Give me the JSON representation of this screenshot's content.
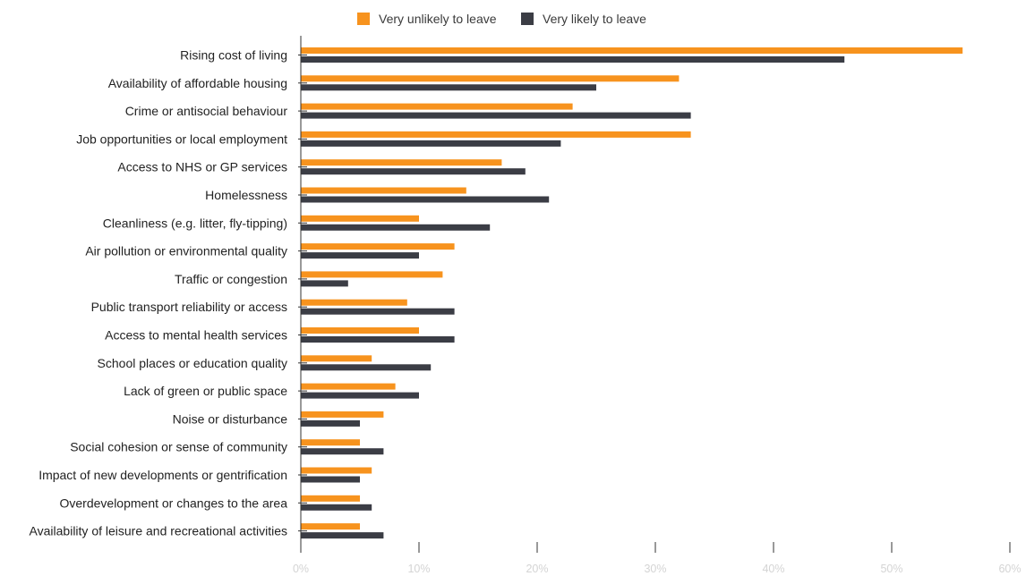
{
  "chart_data": {
    "type": "bar",
    "orientation": "horizontal",
    "categories": [
      "Rising cost of living",
      "Availability of affordable housing",
      "Crime or antisocial behaviour",
      "Job opportunities or local employment",
      "Access to NHS or GP services",
      "Homelessness",
      "Cleanliness (e.g. litter, fly-tipping)",
      "Air pollution or environmental quality",
      "Traffic or congestion",
      "Public transport reliability or access",
      "Access to mental health services",
      "School places or education quality",
      "Lack of green or public space",
      "Noise or disturbance",
      "Social cohesion or sense of community",
      "Impact of new developments or gentrification",
      "Overdevelopment or changes to the area",
      "Availability of leisure and recreational activities"
    ],
    "series": [
      {
        "name": "Very unlikely to leave",
        "color": "#f7931e",
        "values": [
          56,
          32,
          23,
          33,
          17,
          14,
          10,
          13,
          12,
          9,
          10,
          6,
          8,
          7,
          5,
          6,
          5,
          5
        ]
      },
      {
        "name": "Very likely to leave",
        "color": "#3b3d45",
        "values": [
          46,
          25,
          33,
          22,
          19,
          21,
          16,
          10,
          4,
          13,
          13,
          11,
          10,
          5,
          7,
          5,
          6,
          7
        ]
      }
    ],
    "xlim": [
      0,
      60
    ],
    "x_ticks": [
      "0%",
      "10%",
      "20%",
      "30%",
      "40%",
      "50%",
      "60%"
    ],
    "x_tick_values": [
      0,
      10,
      20,
      30,
      40,
      50,
      60
    ],
    "legend_position": "top-center",
    "grid": false
  }
}
